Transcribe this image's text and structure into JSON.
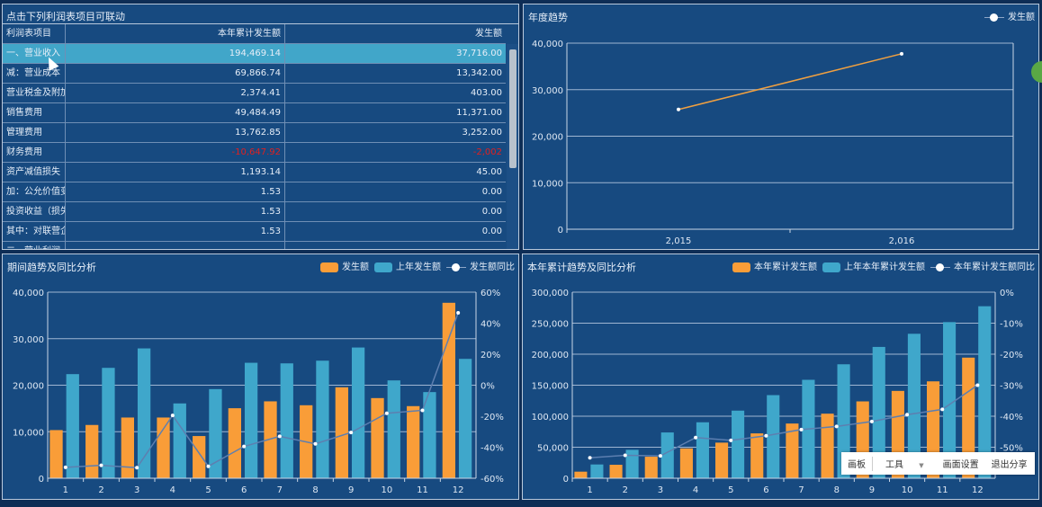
{
  "table": {
    "title": "点击下列利润表项目可联动",
    "headers": [
      "利润表项目",
      "本年累计发生额",
      "发生额"
    ],
    "rows": [
      {
        "item": "一、营业收入",
        "ytd": "194,469.14",
        "amount": "37,716.00",
        "selected": true
      },
      {
        "item": "减：营业成本",
        "ytd": "69,866.74",
        "amount": "13,342.00"
      },
      {
        "item": "营业税金及附加",
        "ytd": "2,374.41",
        "amount": "403.00"
      },
      {
        "item": "销售费用",
        "ytd": "49,484.49",
        "amount": "11,371.00"
      },
      {
        "item": "管理费用",
        "ytd": "13,762.85",
        "amount": "3,252.00"
      },
      {
        "item": "财务费用",
        "ytd": "-10,647.92",
        "amount": "-2,002",
        "negative": true
      },
      {
        "item": "资产减值损失",
        "ytd": "1,193.14",
        "amount": "45.00"
      },
      {
        "item": "加：公允价值变动",
        "ytd": "1.53",
        "amount": "0.00"
      },
      {
        "item": "投资收益（损失",
        "ytd": "1.53",
        "amount": "0.00"
      },
      {
        "item": "其中：对联营企业",
        "ytd": "1.53",
        "amount": "0.00"
      },
      {
        "item": "二、营业利润",
        "ytd": "",
        "amount": ""
      }
    ]
  },
  "chart_data": [
    {
      "type": "line",
      "title": "年度趋势",
      "categories": [
        "2,015",
        "2,016"
      ],
      "series": [
        {
          "name": "发生额",
          "values": [
            25740,
            37716
          ],
          "color": "#f0a040"
        }
      ],
      "ylim": [
        0,
        40000
      ],
      "yticks": [
        "0",
        "10,000",
        "20,000",
        "30,000",
        "40,000"
      ],
      "grid": true,
      "legend": "top-right"
    },
    {
      "type": "bar",
      "title": "期间趋势及同比分析",
      "categories": [
        "1",
        "2",
        "3",
        "4",
        "5",
        "6",
        "7",
        "8",
        "9",
        "10",
        "11",
        "12"
      ],
      "series": [
        {
          "name": "发生额",
          "type": "bar",
          "color": "#f99d38",
          "values": [
            10350,
            11450,
            13050,
            13050,
            9070,
            15050,
            16530,
            15690,
            19550,
            17230,
            15500,
            37716
          ]
        },
        {
          "name": "上年发生额",
          "type": "bar",
          "color": "#3fa7cb",
          "values": [
            22380,
            23730,
            27910,
            16080,
            19160,
            24820,
            24690,
            25270,
            28100,
            21030,
            18520,
            25660
          ]
        },
        {
          "name": "发生额同比",
          "type": "line",
          "axis": "right",
          "color": "#5d7fb0",
          "values": [
            -53,
            -51.7,
            -53.2,
            -19.5,
            -52.3,
            -39.5,
            -33,
            -37.8,
            -30.5,
            -18.1,
            -16.2,
            46.7
          ]
        }
      ],
      "ylim": [
        0,
        40000
      ],
      "yticks": [
        "0",
        "10,000",
        "20,000",
        "30,000",
        "40,000"
      ],
      "y2lim": [
        -60,
        60
      ],
      "y2ticks": [
        "-60%",
        "-40%",
        "-20%",
        "0%",
        "20%",
        "40%",
        "60%"
      ],
      "grid": true,
      "legend": "top-right"
    },
    {
      "type": "bar",
      "title": "本年累计趋势及同比分析",
      "categories": [
        "1",
        "2",
        "3",
        "4",
        "5",
        "6",
        "7",
        "8",
        "9",
        "10",
        "11",
        "12"
      ],
      "series": [
        {
          "name": "本年累计发生额",
          "type": "bar",
          "color": "#f99d38",
          "values": [
            10600,
            21700,
            34700,
            48200,
            57400,
            72300,
            88200,
            104100,
            123900,
            140800,
            156200,
            194469
          ]
        },
        {
          "name": "上年本年累计发生额",
          "type": "bar",
          "color": "#3fa7cb",
          "values": [
            22200,
            45800,
            73800,
            90200,
            109000,
            134000,
            158700,
            183700,
            211700,
            232900,
            251700,
            277300
          ]
        },
        {
          "name": "本年累计发生额同比",
          "type": "line",
          "axis": "right",
          "color": "#5d7fb0",
          "values": [
            -53.4,
            -52.6,
            -52.8,
            -46.9,
            -47.8,
            -46.3,
            -44.3,
            -43.3,
            -41.7,
            -39.5,
            -37.8,
            -30
          ]
        }
      ],
      "ylim": [
        0,
        300000
      ],
      "yticks": [
        "0",
        "50,000",
        "100,000",
        "150,000",
        "200,000",
        "250,000",
        "300,000"
      ],
      "y2lim": [
        -60,
        0
      ],
      "y2ticks": [
        "",
        "-50%",
        "-40%",
        "-30%",
        "-20%",
        "-10%",
        "0%"
      ],
      "grid": true,
      "legend": "top-right"
    }
  ],
  "toolbar": {
    "items": [
      "画板",
      "工具",
      "画面设置",
      "退出分享"
    ]
  }
}
